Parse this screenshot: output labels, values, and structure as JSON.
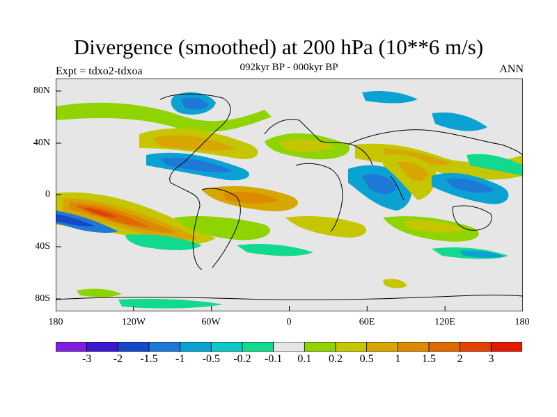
{
  "title": "Divergence (smoothed) at 200 hPa (10**6 m/s)",
  "subtitle": "092kyr BP - 000kyr BP",
  "left_label": "Expt = tdxo2-tdxoa",
  "right_label": "ANN",
  "axes": {
    "y_ticks": [
      "80N",
      "40N",
      "0",
      "40S",
      "80S"
    ],
    "x_ticks": [
      "180",
      "120W",
      "60W",
      "0",
      "60E",
      "120E",
      "180"
    ]
  },
  "colorbar": {
    "colors": [
      "#7f1fe0",
      "#3b17d0",
      "#1448c9",
      "#1e78d6",
      "#0aa2d2",
      "#10c8c6",
      "#11d98d",
      "#e6e6e6",
      "#8fd400",
      "#c5c600",
      "#d7a600",
      "#dc8a00",
      "#e06a00",
      "#e04400",
      "#e01b00"
    ],
    "labels": [
      "-3",
      "-2",
      "-1.5",
      "-1",
      "-0.5",
      "-0.2",
      "-0.1",
      "0.1",
      "0.2",
      "0.5",
      "1",
      "1.5",
      "2",
      "3"
    ]
  }
}
